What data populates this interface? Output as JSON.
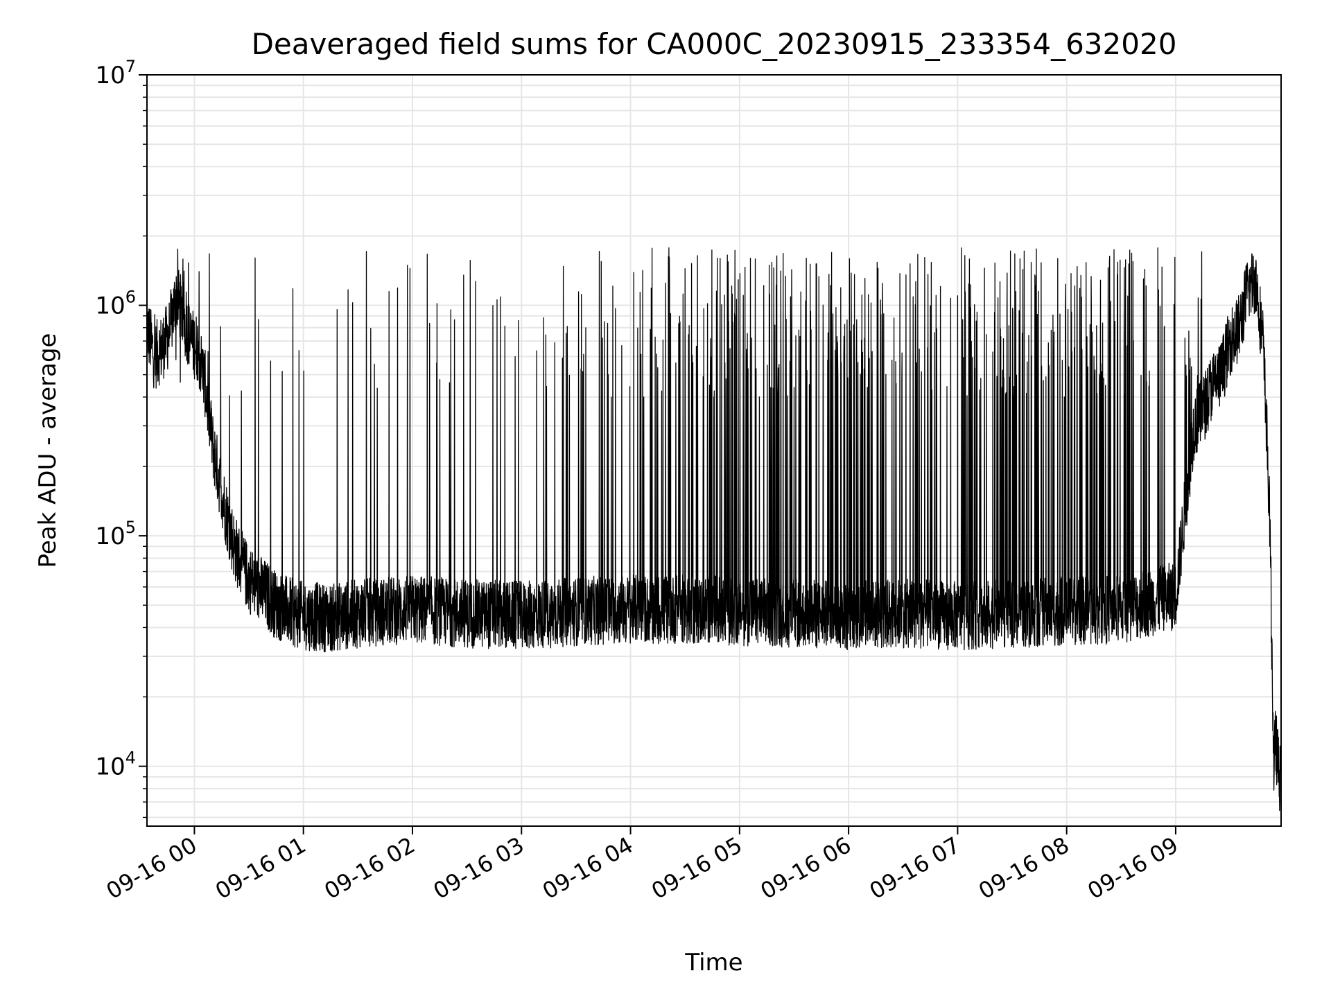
{
  "chart_data": {
    "type": "line",
    "title": "Deaveraged field sums for CA000C_20230915_233354_632020",
    "xlabel": "Time",
    "ylabel": "Peak ADU - average",
    "yscale": "log",
    "ylim": [
      5500,
      10000000
    ],
    "xlim": [
      "2023-09-15 23:33:54",
      "2023-09-16 09:58:00"
    ],
    "grid": true,
    "grid_color": "#e6e6e6",
    "line_color": "#000000",
    "x_ticks": [
      {
        "value": "2023-09-16 00:00",
        "label": "09-16 00"
      },
      {
        "value": "2023-09-16 01:00",
        "label": "09-16 01"
      },
      {
        "value": "2023-09-16 02:00",
        "label": "09-16 02"
      },
      {
        "value": "2023-09-16 03:00",
        "label": "09-16 03"
      },
      {
        "value": "2023-09-16 04:00",
        "label": "09-16 04"
      },
      {
        "value": "2023-09-16 05:00",
        "label": "09-16 05"
      },
      {
        "value": "2023-09-16 06:00",
        "label": "09-16 06"
      },
      {
        "value": "2023-09-16 07:00",
        "label": "09-16 07"
      },
      {
        "value": "2023-09-16 08:00",
        "label": "09-16 08"
      },
      {
        "value": "2023-09-16 09:00",
        "label": "09-16 09"
      }
    ],
    "y_ticks": [
      {
        "value": 10000,
        "base": "10",
        "exp": "4"
      },
      {
        "value": 100000,
        "base": "10",
        "exp": "5"
      },
      {
        "value": 1000000,
        "base": "10",
        "exp": "6"
      },
      {
        "value": 10000000,
        "base": "10",
        "exp": "7"
      }
    ],
    "series": [
      {
        "x": [
          "2023-09-15 23:34",
          "2023-09-15 23:38",
          "2023-09-15 23:42",
          "2023-09-15 23:46",
          "2023-09-15 23:50",
          "2023-09-15 23:54",
          "2023-09-15 23:58",
          "2023-09-16 00:02",
          "2023-09-16 00:06",
          "2023-09-16 00:10",
          "2023-09-16 00:14",
          "2023-09-16 00:18",
          "2023-09-16 00:22",
          "2023-09-16 00:26",
          "2023-09-16 00:30",
          "2023-09-16 00:35",
          "2023-09-16 00:40",
          "2023-09-16 00:45",
          "2023-09-16 00:50",
          "2023-09-16 00:55",
          "2023-09-16 01:00",
          "2023-09-16 01:15",
          "2023-09-16 01:30",
          "2023-09-16 01:45",
          "2023-09-16 02:00",
          "2023-09-16 02:30",
          "2023-09-16 03:00",
          "2023-09-16 03:30",
          "2023-09-16 04:00",
          "2023-09-16 04:30",
          "2023-09-16 05:00",
          "2023-09-16 05:30",
          "2023-09-16 06:00",
          "2023-09-16 06:30",
          "2023-09-16 07:00",
          "2023-09-16 07:30",
          "2023-09-16 08:00",
          "2023-09-16 08:30",
          "2023-09-16 09:00",
          "2023-09-16 09:10",
          "2023-09-16 09:15",
          "2023-09-16 09:20",
          "2023-09-16 09:25",
          "2023-09-16 09:30",
          "2023-09-16 09:35",
          "2023-09-16 09:40",
          "2023-09-16 09:44",
          "2023-09-16 09:48",
          "2023-09-16 09:50",
          "2023-09-16 09:52",
          "2023-09-16 09:53",
          "2023-09-16 09:54",
          "2023-09-16 09:55",
          "2023-09-16 09:57"
        ],
        "y": [
          800000,
          600000,
          650000,
          750000,
          1100000,
          900000,
          700000,
          650000,
          450000,
          250000,
          170000,
          120000,
          90000,
          75000,
          65000,
          60000,
          55000,
          50000,
          48000,
          46000,
          45000,
          44000,
          46000,
          47000,
          48000,
          46000,
          45000,
          47000,
          48000,
          48000,
          47000,
          46000,
          45000,
          46000,
          45000,
          46000,
          47000,
          48000,
          55000,
          300000,
          350000,
          450000,
          500000,
          700000,
          800000,
          1200000,
          1300000,
          700000,
          300000,
          100000,
          30000,
          10000,
          13000,
          9000
        ]
      }
    ]
  }
}
